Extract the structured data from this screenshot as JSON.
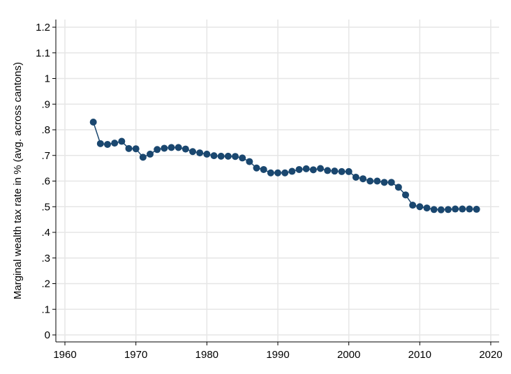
{
  "chart_data": {
    "type": "line",
    "title": "",
    "xlabel": "",
    "ylabel": "Marginal wealth tax rate in % (avg. across cantons)",
    "xlim": [
      1960,
      2020
    ],
    "ylim": [
      0,
      1.2
    ],
    "x_ticks": [
      1960,
      1970,
      1980,
      1990,
      2000,
      2010,
      2020
    ],
    "x_tick_labels": [
      "1960",
      "1970",
      "1980",
      "1990",
      "2000",
      "2010",
      "2020"
    ],
    "y_ticks": [
      0,
      0.1,
      0.2,
      0.3,
      0.4,
      0.5,
      0.6,
      0.7,
      0.8,
      0.9,
      1.0,
      1.1,
      1.2
    ],
    "y_tick_labels": [
      "0",
      ".1",
      ".2",
      ".3",
      ".4",
      ".5",
      ".6",
      ".7",
      ".8",
      ".9",
      "1",
      "1.1",
      "1.2"
    ],
    "grid": "vertical and horizontal",
    "legend": "none",
    "series_color": "#1a476f",
    "x": [
      1964,
      1965,
      1966,
      1967,
      1968,
      1969,
      1970,
      1971,
      1972,
      1973,
      1974,
      1975,
      1976,
      1977,
      1978,
      1979,
      1980,
      1981,
      1982,
      1983,
      1984,
      1985,
      1986,
      1987,
      1988,
      1989,
      1990,
      1991,
      1992,
      1993,
      1994,
      1995,
      1996,
      1997,
      1998,
      1999,
      2000,
      2001,
      2002,
      2003,
      2004,
      2005,
      2006,
      2007,
      2008,
      2009,
      2010,
      2011,
      2012,
      2013,
      2014,
      2015,
      2016,
      2017,
      2018
    ],
    "values": [
      0.83,
      0.746,
      0.743,
      0.748,
      0.755,
      0.727,
      0.726,
      0.693,
      0.705,
      0.723,
      0.728,
      0.731,
      0.731,
      0.725,
      0.715,
      0.71,
      0.705,
      0.699,
      0.697,
      0.697,
      0.696,
      0.69,
      0.676,
      0.651,
      0.645,
      0.632,
      0.632,
      0.632,
      0.638,
      0.645,
      0.648,
      0.644,
      0.649,
      0.641,
      0.639,
      0.637,
      0.637,
      0.615,
      0.609,
      0.6,
      0.6,
      0.595,
      0.595,
      0.576,
      0.546,
      0.506,
      0.5,
      0.495,
      0.489,
      0.488,
      0.489,
      0.491,
      0.491,
      0.491,
      0.49
    ]
  }
}
